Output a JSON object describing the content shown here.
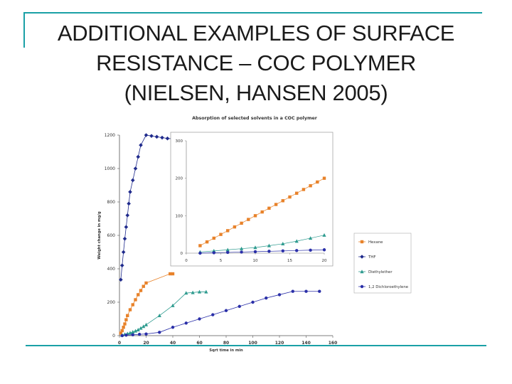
{
  "slide": {
    "title_lines": [
      "ADDITIONAL EXAMPLES OF SURFACE",
      "RESISTANCE – COC POLYMER",
      "(NIELSEN, HANSEN 2005)"
    ],
    "accent_color": "#1aa0a6"
  },
  "chart_data": [
    {
      "type": "scatter",
      "title": "Absorption of selected solvents in a COC polymer",
      "xlabel": "Sqrt time in min",
      "ylabel": "Weight change in mg/g",
      "xlim": [
        0,
        160
      ],
      "ylim": [
        0,
        1200
      ],
      "xticks": [
        "0",
        "20",
        "40",
        "60",
        "80",
        "100",
        "120",
        "140",
        "160"
      ],
      "yticks": [
        "0",
        "200",
        "400",
        "600",
        "800",
        "1000",
        "1200"
      ],
      "grid": false,
      "legend_position": "right",
      "series": [
        {
          "name": "Hexane",
          "color": "#e8822a",
          "marker": "square",
          "x": [
            1,
            2,
            3,
            4,
            5,
            6,
            8,
            10,
            12,
            14,
            16,
            18,
            20,
            38,
            40
          ],
          "y": [
            15,
            30,
            50,
            70,
            95,
            120,
            155,
            185,
            215,
            245,
            270,
            295,
            315,
            370,
            370
          ]
        },
        {
          "name": "THF",
          "color": "#1f2a8c",
          "marker": "diamond",
          "x": [
            1,
            2,
            3,
            4,
            5,
            6,
            7,
            8,
            10,
            12,
            14,
            16,
            20,
            24,
            28,
            32,
            36,
            40
          ],
          "y": [
            335,
            420,
            500,
            580,
            650,
            720,
            790,
            860,
            930,
            1000,
            1070,
            1140,
            1200,
            1195,
            1190,
            1185,
            1180,
            1178
          ]
        },
        {
          "name": "Diethylether",
          "color": "#2e9b8f",
          "marker": "triangle",
          "x": [
            2,
            4,
            6,
            8,
            10,
            12,
            14,
            16,
            18,
            20,
            30,
            40,
            50,
            55,
            60,
            65
          ],
          "y": [
            3,
            8,
            12,
            17,
            22,
            28,
            35,
            45,
            55,
            65,
            120,
            180,
            255,
            258,
            262,
            262
          ]
        },
        {
          "name": "1,2 Dichloroethylene",
          "color": "#2a2fa8",
          "marker": "circle",
          "x": [
            2,
            5,
            10,
            15,
            20,
            30,
            40,
            50,
            60,
            70,
            80,
            90,
            100,
            110,
            120,
            130,
            140,
            150
          ],
          "y": [
            0,
            3,
            5,
            8,
            10,
            20,
            50,
            75,
            100,
            125,
            150,
            175,
            200,
            225,
            245,
            265,
            265,
            265
          ]
        }
      ]
    },
    {
      "type": "scatter",
      "note": "inset",
      "xlim": [
        0,
        20
      ],
      "ylim": [
        0,
        300
      ],
      "xticks": [
        "0",
        "5",
        "10",
        "15",
        "20"
      ],
      "yticks": [
        "0",
        "100",
        "200",
        "300"
      ],
      "series": [
        {
          "name": "Hexane",
          "color": "#e8822a",
          "marker": "square",
          "x": [
            2,
            3,
            4,
            5,
            6,
            7,
            8,
            9,
            10,
            11,
            12,
            13,
            14,
            15,
            16,
            17,
            18,
            19,
            20
          ],
          "y": [
            20,
            30,
            40,
            50,
            60,
            70,
            80,
            90,
            100,
            110,
            120,
            130,
            140,
            150,
            160,
            170,
            180,
            190,
            200
          ]
        },
        {
          "name": "Diethylether",
          "color": "#2e9b8f",
          "marker": "triangle",
          "x": [
            2,
            4,
            6,
            8,
            10,
            12,
            14,
            16,
            18,
            20
          ],
          "y": [
            3,
            6,
            9,
            12,
            15,
            20,
            25,
            32,
            40,
            48
          ]
        },
        {
          "name": "1,2 Dichloroethylene",
          "color": "#2a2fa8",
          "marker": "circle",
          "x": [
            2,
            4,
            6,
            8,
            10,
            12,
            14,
            16,
            18,
            20
          ],
          "y": [
            0,
            1,
            2,
            3,
            4,
            5,
            6,
            7,
            8,
            9
          ]
        }
      ]
    }
  ]
}
